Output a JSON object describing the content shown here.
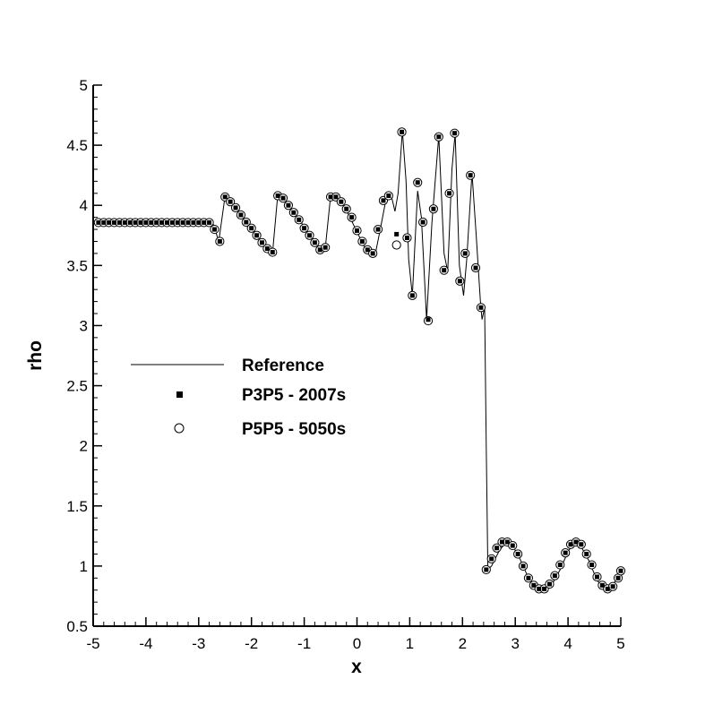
{
  "chart_data": {
    "type": "line",
    "xlabel": "x",
    "ylabel": "rho",
    "xlim": [
      -5,
      5
    ],
    "ylim": [
      0.5,
      5
    ],
    "xticks": [
      "-5",
      "-4",
      "-3",
      "-2",
      "-1",
      "0",
      "1",
      "2",
      "3",
      "4",
      "5"
    ],
    "yticks": [
      "0.5",
      "1",
      "1.5",
      "2",
      "2.5",
      "3",
      "3.5",
      "4",
      "4.5",
      "5"
    ],
    "grid": false,
    "legend_position": "center-left",
    "series": [
      {
        "name": "Reference",
        "style": "thin black line",
        "points": [
          [
            -5,
            3.857
          ],
          [
            -2.8,
            3.857
          ],
          [
            -2.72,
            3.84
          ],
          [
            -2.62,
            3.7
          ],
          [
            -2.5,
            4.08
          ],
          [
            -2.4,
            4.03
          ],
          [
            -2.2,
            3.92
          ],
          [
            -2.0,
            3.8
          ],
          [
            -1.8,
            3.68
          ],
          [
            -1.6,
            3.61
          ],
          [
            -1.5,
            4.09
          ],
          [
            -1.4,
            4.06
          ],
          [
            -1.2,
            3.95
          ],
          [
            -1.0,
            3.82
          ],
          [
            -0.8,
            3.7
          ],
          [
            -0.7,
            3.61
          ],
          [
            -0.6,
            3.65
          ],
          [
            -0.5,
            4.08
          ],
          [
            -0.35,
            4.06
          ],
          [
            -0.2,
            3.96
          ],
          [
            0,
            3.78
          ],
          [
            0.2,
            3.6
          ],
          [
            0.35,
            3.6
          ],
          [
            0.45,
            3.82
          ],
          [
            0.55,
            4.05
          ],
          [
            0.65,
            4.08
          ],
          [
            0.72,
            3.95
          ],
          [
            0.78,
            4.1
          ],
          [
            0.86,
            4.62
          ],
          [
            0.93,
            4.2
          ],
          [
            0.98,
            3.55
          ],
          [
            1.05,
            3.25
          ],
          [
            1.15,
            4.12
          ],
          [
            1.22,
            3.9
          ],
          [
            1.32,
            3.05
          ],
          [
            1.42,
            3.85
          ],
          [
            1.55,
            4.58
          ],
          [
            1.65,
            3.6
          ],
          [
            1.72,
            3.45
          ],
          [
            1.8,
            4.3
          ],
          [
            1.86,
            4.6
          ],
          [
            1.94,
            3.5
          ],
          [
            2.02,
            3.25
          ],
          [
            2.08,
            3.55
          ],
          [
            2.18,
            4.27
          ],
          [
            2.26,
            3.75
          ],
          [
            2.34,
            3.2
          ],
          [
            2.37,
            3.05
          ],
          [
            2.42,
            3.15
          ],
          [
            2.45,
            2.0
          ],
          [
            2.48,
            0.97
          ],
          [
            2.55,
            1.0
          ],
          [
            2.7,
            1.13
          ],
          [
            2.83,
            1.2
          ],
          [
            2.95,
            1.17
          ],
          [
            3.1,
            1.05
          ],
          [
            3.25,
            0.9
          ],
          [
            3.4,
            0.81
          ],
          [
            3.55,
            0.8
          ],
          [
            3.7,
            0.85
          ],
          [
            3.85,
            0.97
          ],
          [
            4.0,
            1.12
          ],
          [
            4.12,
            1.2
          ],
          [
            4.25,
            1.16
          ],
          [
            4.4,
            1.04
          ],
          [
            4.55,
            0.88
          ],
          [
            4.7,
            0.81
          ],
          [
            4.85,
            0.84
          ],
          [
            5.0,
            0.96
          ]
        ]
      },
      {
        "name": "P3P5 - 2007s",
        "style": "filled square marker",
        "points": [
          [
            -4.9,
            3.857
          ],
          [
            -4.8,
            3.857
          ],
          [
            -4.7,
            3.857
          ],
          [
            -4.6,
            3.857
          ],
          [
            -4.5,
            3.857
          ],
          [
            -4.4,
            3.857
          ],
          [
            -4.3,
            3.857
          ],
          [
            -4.2,
            3.857
          ],
          [
            -4.1,
            3.857
          ],
          [
            -4.0,
            3.857
          ],
          [
            -3.9,
            3.857
          ],
          [
            -3.8,
            3.857
          ],
          [
            -3.7,
            3.857
          ],
          [
            -3.6,
            3.857
          ],
          [
            -3.5,
            3.857
          ],
          [
            -3.4,
            3.857
          ],
          [
            -3.3,
            3.857
          ],
          [
            -3.2,
            3.857
          ],
          [
            -3.1,
            3.857
          ],
          [
            -3.0,
            3.857
          ],
          [
            -2.9,
            3.857
          ],
          [
            -2.8,
            3.857
          ],
          [
            -2.7,
            3.8
          ],
          [
            -2.6,
            3.7
          ],
          [
            -2.5,
            4.07
          ],
          [
            -2.4,
            4.03
          ],
          [
            -2.3,
            3.98
          ],
          [
            -2.2,
            3.92
          ],
          [
            -2.1,
            3.86
          ],
          [
            -2.0,
            3.81
          ],
          [
            -1.9,
            3.75
          ],
          [
            -1.8,
            3.69
          ],
          [
            -1.7,
            3.64
          ],
          [
            -1.6,
            3.61
          ],
          [
            -1.5,
            4.08
          ],
          [
            -1.4,
            4.06
          ],
          [
            -1.3,
            4.0
          ],
          [
            -1.2,
            3.94
          ],
          [
            -1.1,
            3.88
          ],
          [
            -1.0,
            3.81
          ],
          [
            -0.9,
            3.75
          ],
          [
            -0.8,
            3.69
          ],
          [
            -0.7,
            3.63
          ],
          [
            -0.6,
            3.65
          ],
          [
            -0.5,
            4.07
          ],
          [
            -0.4,
            4.07
          ],
          [
            -0.3,
            4.03
          ],
          [
            -0.2,
            3.97
          ],
          [
            -0.1,
            3.9
          ],
          [
            0.0,
            3.79
          ],
          [
            0.1,
            3.7
          ],
          [
            0.2,
            3.63
          ],
          [
            0.3,
            3.6
          ],
          [
            0.4,
            3.8
          ],
          [
            0.5,
            4.04
          ],
          [
            0.6,
            4.08
          ],
          [
            0.75,
            3.76
          ],
          [
            0.85,
            4.61
          ],
          [
            0.95,
            3.73
          ],
          [
            1.05,
            3.25
          ],
          [
            1.15,
            4.19
          ],
          [
            1.25,
            3.86
          ],
          [
            1.35,
            3.05
          ],
          [
            1.45,
            3.97
          ],
          [
            1.55,
            4.57
          ],
          [
            1.65,
            3.46
          ],
          [
            1.75,
            4.1
          ],
          [
            1.85,
            4.6
          ],
          [
            1.95,
            3.37
          ],
          [
            2.05,
            3.6
          ],
          [
            2.15,
            4.25
          ],
          [
            2.25,
            3.48
          ],
          [
            2.35,
            3.15
          ],
          [
            2.45,
            0.97
          ],
          [
            2.55,
            1.06
          ],
          [
            2.65,
            1.15
          ],
          [
            2.75,
            1.2
          ],
          [
            2.85,
            1.2
          ],
          [
            2.95,
            1.17
          ],
          [
            3.05,
            1.1
          ],
          [
            3.15,
            1.0
          ],
          [
            3.25,
            0.9
          ],
          [
            3.35,
            0.84
          ],
          [
            3.45,
            0.81
          ],
          [
            3.55,
            0.81
          ],
          [
            3.65,
            0.85
          ],
          [
            3.75,
            0.92
          ],
          [
            3.85,
            1.01
          ],
          [
            3.95,
            1.11
          ],
          [
            4.05,
            1.18
          ],
          [
            4.15,
            1.2
          ],
          [
            4.25,
            1.18
          ],
          [
            4.35,
            1.1
          ],
          [
            4.45,
            1.01
          ],
          [
            4.55,
            0.91
          ],
          [
            4.65,
            0.84
          ],
          [
            4.75,
            0.81
          ],
          [
            4.85,
            0.83
          ],
          [
            4.95,
            0.9
          ],
          [
            5.0,
            0.96
          ]
        ]
      },
      {
        "name": "P5P5 - 5050s",
        "style": "open circle marker",
        "points": [
          [
            -4.9,
            3.857
          ],
          [
            -4.8,
            3.857
          ],
          [
            -4.7,
            3.857
          ],
          [
            -4.6,
            3.857
          ],
          [
            -4.5,
            3.857
          ],
          [
            -4.4,
            3.857
          ],
          [
            -4.3,
            3.857
          ],
          [
            -4.2,
            3.857
          ],
          [
            -4.1,
            3.857
          ],
          [
            -4.0,
            3.857
          ],
          [
            -3.9,
            3.857
          ],
          [
            -3.8,
            3.857
          ],
          [
            -3.7,
            3.857
          ],
          [
            -3.6,
            3.857
          ],
          [
            -3.5,
            3.857
          ],
          [
            -3.4,
            3.857
          ],
          [
            -3.3,
            3.857
          ],
          [
            -3.2,
            3.857
          ],
          [
            -3.1,
            3.857
          ],
          [
            -3.0,
            3.857
          ],
          [
            -2.9,
            3.857
          ],
          [
            -2.8,
            3.857
          ],
          [
            -2.7,
            3.8
          ],
          [
            -2.6,
            3.7
          ],
          [
            -2.5,
            4.07
          ],
          [
            -2.4,
            4.03
          ],
          [
            -2.3,
            3.98
          ],
          [
            -2.2,
            3.92
          ],
          [
            -2.1,
            3.86
          ],
          [
            -2.0,
            3.81
          ],
          [
            -1.9,
            3.75
          ],
          [
            -1.8,
            3.69
          ],
          [
            -1.7,
            3.64
          ],
          [
            -1.6,
            3.61
          ],
          [
            -1.5,
            4.08
          ],
          [
            -1.4,
            4.06
          ],
          [
            -1.3,
            4.0
          ],
          [
            -1.2,
            3.94
          ],
          [
            -1.1,
            3.88
          ],
          [
            -1.0,
            3.81
          ],
          [
            -0.9,
            3.75
          ],
          [
            -0.8,
            3.69
          ],
          [
            -0.7,
            3.63
          ],
          [
            -0.6,
            3.65
          ],
          [
            -0.5,
            4.07
          ],
          [
            -0.4,
            4.07
          ],
          [
            -0.3,
            4.03
          ],
          [
            -0.2,
            3.97
          ],
          [
            -0.1,
            3.9
          ],
          [
            0.0,
            3.79
          ],
          [
            0.1,
            3.7
          ],
          [
            0.2,
            3.63
          ],
          [
            0.3,
            3.6
          ],
          [
            0.4,
            3.8
          ],
          [
            0.5,
            4.04
          ],
          [
            0.6,
            4.08
          ],
          [
            0.75,
            3.67
          ],
          [
            0.85,
            4.61
          ],
          [
            0.95,
            3.73
          ],
          [
            1.05,
            3.25
          ],
          [
            1.15,
            4.19
          ],
          [
            1.25,
            3.86
          ],
          [
            1.35,
            3.04
          ],
          [
            1.45,
            3.97
          ],
          [
            1.55,
            4.57
          ],
          [
            1.65,
            3.46
          ],
          [
            1.75,
            4.1
          ],
          [
            1.85,
            4.6
          ],
          [
            1.95,
            3.37
          ],
          [
            2.05,
            3.6
          ],
          [
            2.15,
            4.25
          ],
          [
            2.25,
            3.48
          ],
          [
            2.35,
            3.15
          ],
          [
            2.45,
            0.97
          ],
          [
            2.55,
            1.06
          ],
          [
            2.65,
            1.15
          ],
          [
            2.75,
            1.2
          ],
          [
            2.85,
            1.2
          ],
          [
            2.95,
            1.17
          ],
          [
            3.05,
            1.1
          ],
          [
            3.15,
            1.0
          ],
          [
            3.25,
            0.9
          ],
          [
            3.35,
            0.84
          ],
          [
            3.45,
            0.81
          ],
          [
            3.55,
            0.81
          ],
          [
            3.65,
            0.85
          ],
          [
            3.75,
            0.92
          ],
          [
            3.85,
            1.01
          ],
          [
            3.95,
            1.11
          ],
          [
            4.05,
            1.18
          ],
          [
            4.15,
            1.2
          ],
          [
            4.25,
            1.18
          ],
          [
            4.35,
            1.1
          ],
          [
            4.45,
            1.01
          ],
          [
            4.55,
            0.91
          ],
          [
            4.65,
            0.84
          ],
          [
            4.75,
            0.81
          ],
          [
            4.85,
            0.83
          ],
          [
            4.95,
            0.9
          ],
          [
            5.0,
            0.96
          ]
        ]
      }
    ]
  }
}
